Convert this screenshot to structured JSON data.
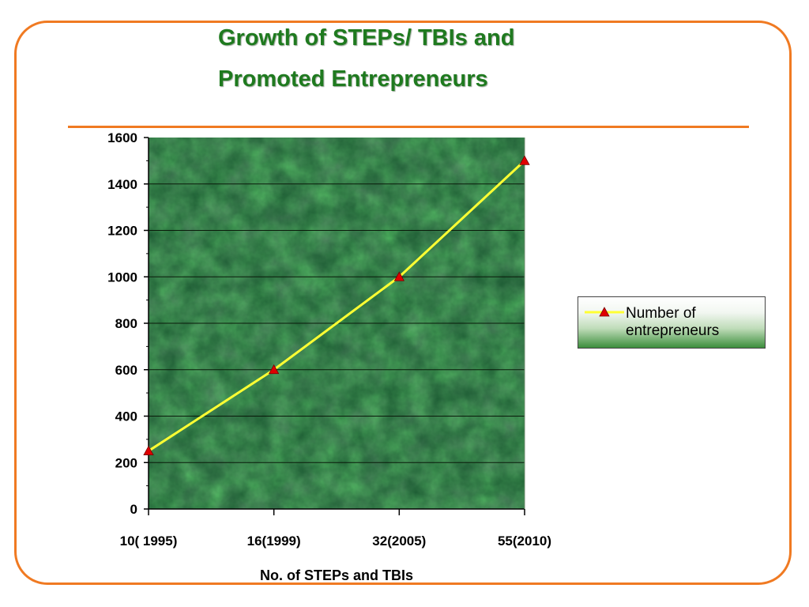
{
  "slide": {
    "title_line1": "Growth of STEPs/ TBIs and",
    "title_line2": "Promoted Entrepreneurs",
    "accent_color": "#f07a22",
    "title_color": "#1f7a1f"
  },
  "chart_data": {
    "type": "line",
    "categories": [
      "10( 1995)",
      "16(1999)",
      "32(2005)",
      "55(2010)"
    ],
    "series": [
      {
        "name": "Number of entrepreneurs",
        "values": [
          250,
          600,
          1000,
          1500
        ],
        "color": "#ffff33",
        "marker_color": "#e00000",
        "marker": "triangle"
      }
    ],
    "xlabel": "No. of STEPs and TBIs",
    "ylabel": "",
    "ylim": [
      0,
      1600
    ],
    "yticks": [
      0,
      200,
      400,
      600,
      800,
      1000,
      1200,
      1400,
      1600
    ],
    "grid": true,
    "plot_background": "dark green marble texture",
    "legend_position": "right"
  },
  "legend": {
    "label_line1": "Number of",
    "label_line2": "entrepreneurs"
  }
}
